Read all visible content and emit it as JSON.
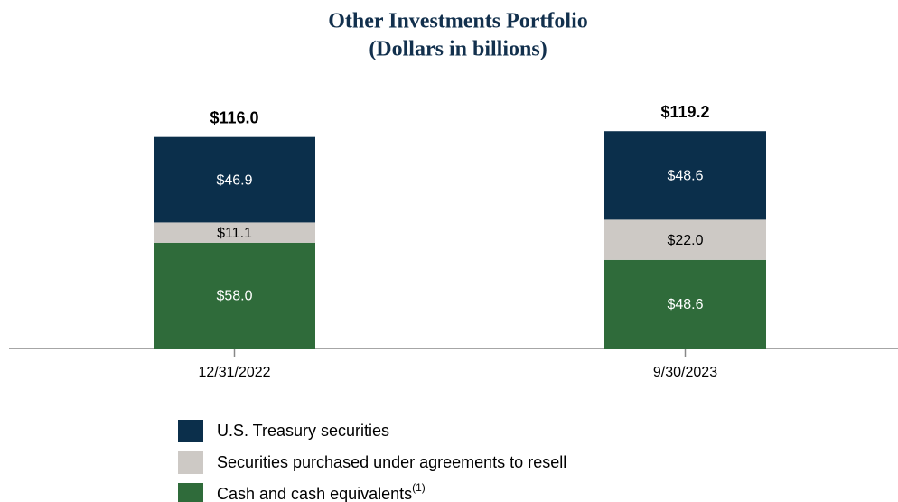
{
  "chart_data": {
    "type": "stacked-bar",
    "title": "Other Investments Portfolio",
    "subtitle": "(Dollars in billions)",
    "categories": [
      "12/31/2022",
      "9/30/2023"
    ],
    "series": [
      {
        "name": "U.S. Treasury securities",
        "color": "#0b2f4b",
        "label_color": "#ffffff",
        "values": [
          46.9,
          48.6
        ],
        "value_labels": [
          "$46.9",
          "$48.6"
        ]
      },
      {
        "name": "Securities purchased under agreements to resell",
        "color": "#cdc9c5",
        "label_color": "#000000",
        "values": [
          11.1,
          22.0
        ],
        "value_labels": [
          "$11.1",
          "$22.0"
        ]
      },
      {
        "name": "Cash and cash equivalents",
        "footnote_marker": "(1)",
        "color": "#2f6b3a",
        "label_color": "#ffffff",
        "values": [
          58.0,
          48.6
        ],
        "value_labels": [
          "$58.0",
          "$48.6"
        ]
      }
    ],
    "totals": [
      116.0,
      119.2
    ],
    "total_labels": [
      "$116.0",
      "$119.2"
    ]
  }
}
